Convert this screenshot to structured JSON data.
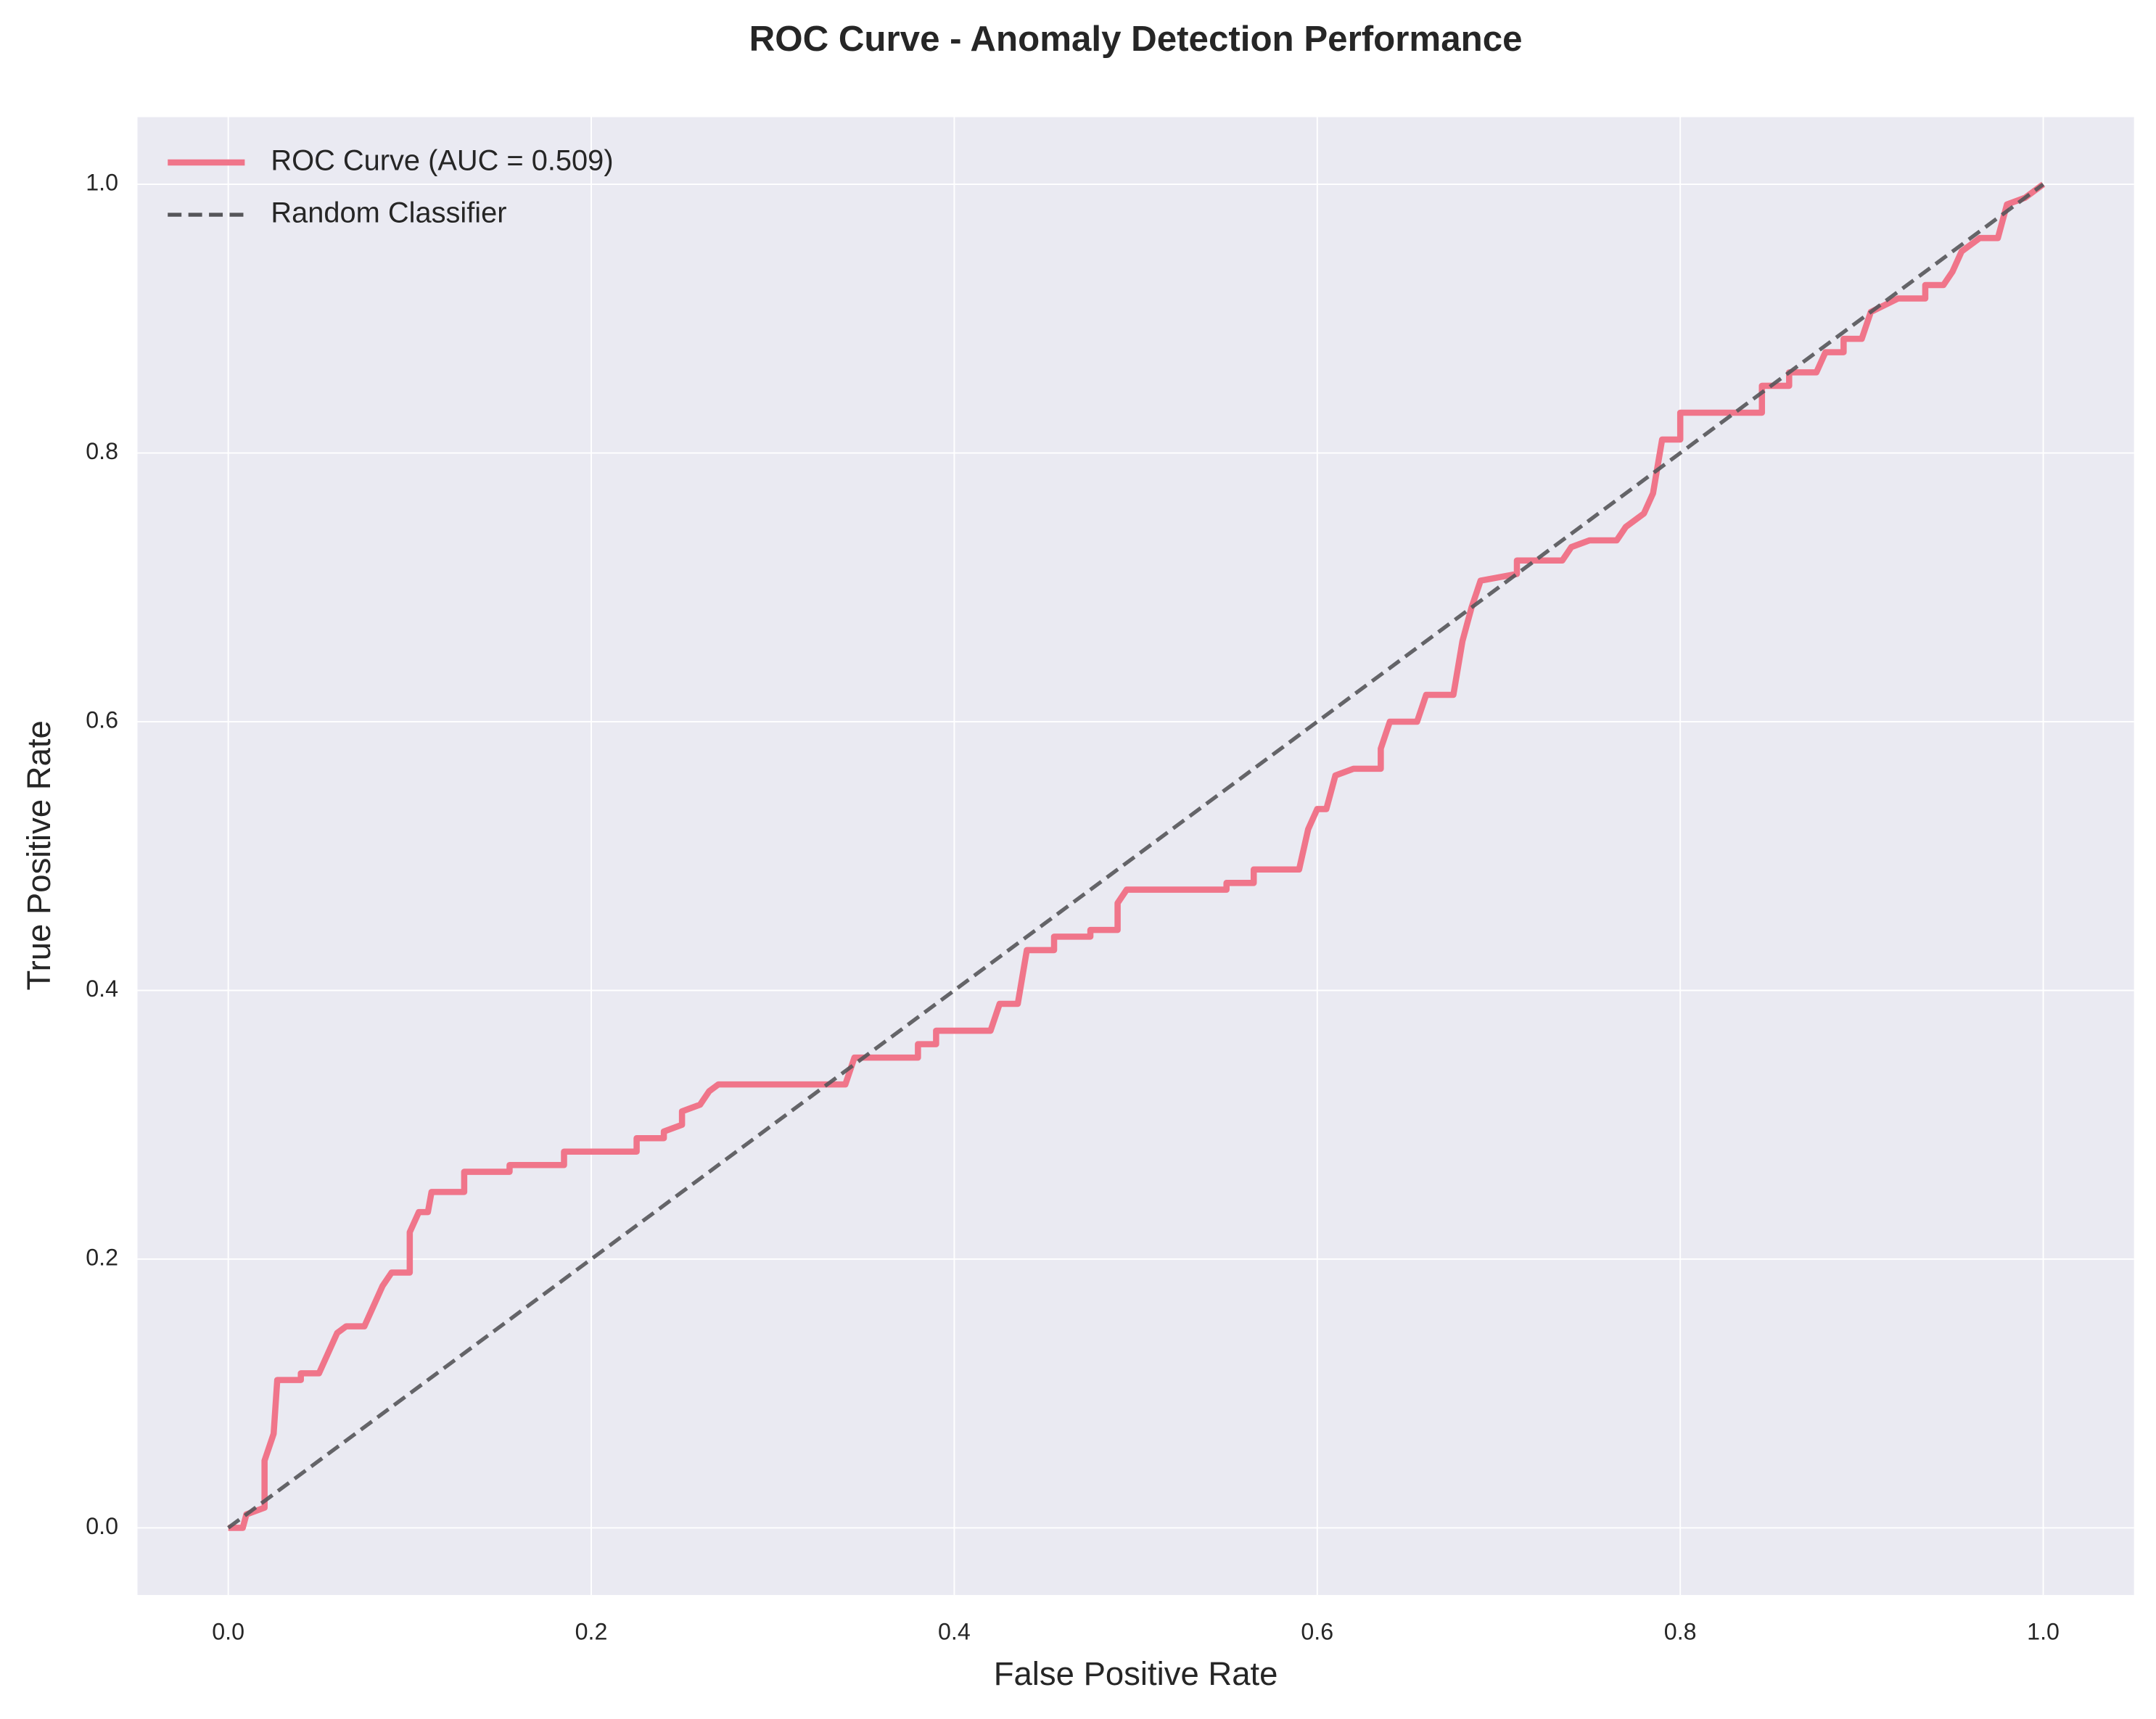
{
  "chart_data": {
    "type": "line",
    "title": "ROC Curve - Anomaly Detection Performance",
    "xlabel": "False Positive Rate",
    "ylabel": "True Positive Rate",
    "xlim": [
      -0.05,
      1.05
    ],
    "ylim": [
      -0.05,
      1.05
    ],
    "xticks": [
      {
        "value": 0,
        "label": "0.0"
      },
      {
        "value": 0.2,
        "label": "0.2"
      },
      {
        "value": 0.4,
        "label": "0.4"
      },
      {
        "value": 0.6,
        "label": "0.6"
      },
      {
        "value": 0.8,
        "label": "0.8"
      },
      {
        "value": 1,
        "label": "1.0"
      }
    ],
    "yticks": [
      {
        "value": 0,
        "label": "0.0"
      },
      {
        "value": 0.2,
        "label": "0.2"
      },
      {
        "value": 0.4,
        "label": "0.4"
      },
      {
        "value": 0.6,
        "label": "0.6"
      },
      {
        "value": 0.8,
        "label": "0.8"
      },
      {
        "value": 1,
        "label": "1.0"
      }
    ],
    "grid": true,
    "legend": "upper left",
    "series": [
      {
        "name": "ROC Curve (AUC = 0.509)",
        "color": "#f0758a",
        "linestyle": "solid",
        "x": [
          0,
          0.008,
          0.01,
          0.02,
          0.02,
          0.025,
          0.027,
          0.04,
          0.04,
          0.05,
          0.055,
          0.06,
          0.065,
          0.075,
          0.085,
          0.09,
          0.1,
          0.1,
          0.105,
          0.11,
          0.112,
          0.13,
          0.13,
          0.155,
          0.155,
          0.185,
          0.185,
          0.225,
          0.225,
          0.24,
          0.24,
          0.25,
          0.25,
          0.26,
          0.265,
          0.27,
          0.34,
          0.345,
          0.38,
          0.38,
          0.39,
          0.39,
          0.42,
          0.425,
          0.435,
          0.44,
          0.455,
          0.455,
          0.475,
          0.475,
          0.49,
          0.49,
          0.495,
          0.55,
          0.55,
          0.565,
          0.565,
          0.59,
          0.595,
          0.6,
          0.605,
          0.61,
          0.62,
          0.635,
          0.635,
          0.64,
          0.655,
          0.66,
          0.675,
          0.68,
          0.685,
          0.69,
          0.71,
          0.71,
          0.735,
          0.74,
          0.75,
          0.765,
          0.77,
          0.78,
          0.785,
          0.79,
          0.8,
          0.8,
          0.845,
          0.845,
          0.86,
          0.86,
          0.875,
          0.88,
          0.89,
          0.89,
          0.9,
          0.905,
          0.92,
          0.935,
          0.935,
          0.945,
          0.95,
          0.955,
          0.965,
          0.975,
          0.98,
          0.99,
          1
        ],
        "values": [
          0,
          0,
          0.01,
          0.015,
          0.05,
          0.07,
          0.11,
          0.11,
          0.115,
          0.115,
          0.13,
          0.145,
          0.15,
          0.15,
          0.18,
          0.19,
          0.19,
          0.22,
          0.235,
          0.235,
          0.25,
          0.25,
          0.265,
          0.265,
          0.27,
          0.27,
          0.28,
          0.28,
          0.29,
          0.29,
          0.295,
          0.3,
          0.31,
          0.315,
          0.325,
          0.33,
          0.33,
          0.35,
          0.35,
          0.36,
          0.36,
          0.37,
          0.37,
          0.39,
          0.39,
          0.43,
          0.43,
          0.44,
          0.44,
          0.445,
          0.445,
          0.465,
          0.475,
          0.475,
          0.48,
          0.48,
          0.49,
          0.49,
          0.52,
          0.535,
          0.535,
          0.56,
          0.565,
          0.565,
          0.58,
          0.6,
          0.6,
          0.62,
          0.62,
          0.66,
          0.685,
          0.705,
          0.71,
          0.72,
          0.72,
          0.73,
          0.735,
          0.735,
          0.745,
          0.755,
          0.77,
          0.81,
          0.81,
          0.83,
          0.83,
          0.85,
          0.85,
          0.86,
          0.86,
          0.875,
          0.875,
          0.885,
          0.885,
          0.905,
          0.915,
          0.915,
          0.925,
          0.925,
          0.935,
          0.95,
          0.96,
          0.96,
          0.985,
          0.99,
          1
        ]
      },
      {
        "name": "Random Classifier",
        "color": "#555559",
        "linestyle": "dashed",
        "x": [
          0,
          1
        ],
        "values": [
          0,
          1
        ]
      }
    ]
  }
}
